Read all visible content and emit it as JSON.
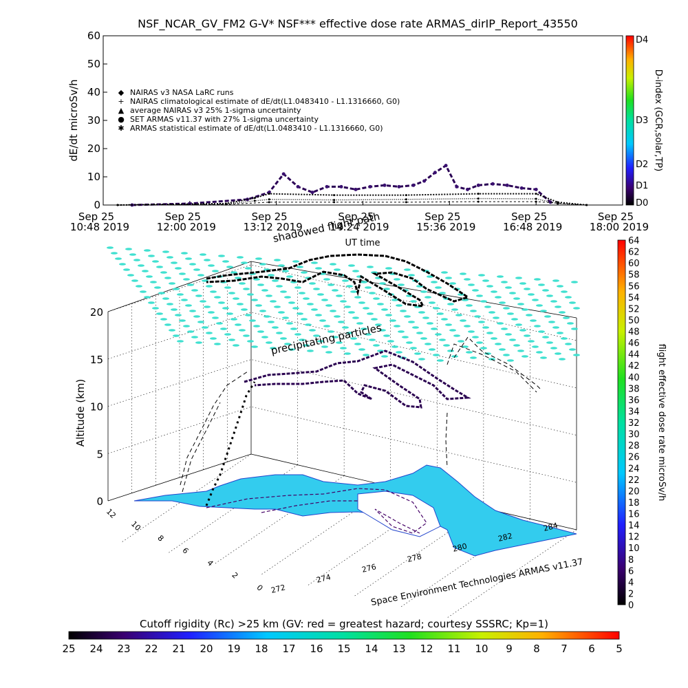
{
  "title": "NSF_NCAR_GV_FM2 G-V* NSF*** effective dose rate ARMAS_dirIP_Report_43550",
  "chart_data": [
    {
      "type": "scatter",
      "ylabel": "dE/dt microSv/h",
      "xlabel": "UT time",
      "ylim": [
        0,
        60
      ],
      "yticks": [
        0,
        10,
        20,
        30,
        40,
        50,
        60
      ],
      "x_ticks": [
        {
          "line1": "Sep 25",
          "line2": "10:48 2019"
        },
        {
          "line1": "Sep 25",
          "line2": "12:00 2019"
        },
        {
          "line1": "Sep 25",
          "line2": "13:12 2019"
        },
        {
          "line1": "Sep 25",
          "line2": "14:24 2019"
        },
        {
          "line1": "Sep 25",
          "line2": "15:36 2019"
        },
        {
          "line1": "Sep 25",
          "line2": "16:48 2019"
        },
        {
          "line1": "Sep 25",
          "line2": "18:00 2019"
        }
      ],
      "xlim_hours": [
        10.8,
        18.0
      ],
      "legend": [
        {
          "symbol": "◆",
          "text": "NAIRAS v3 NASA LaRC runs"
        },
        {
          "symbol": "+",
          "text": "NAIRAS climatological estimate of dE/dt(L1.0483410 - L1.1316660, G0)"
        },
        {
          "symbol": "▲",
          "text": "average NAIRAS v3 25% 1-sigma uncertainty"
        },
        {
          "symbol": "●",
          "text": "SET ARMAS v11.37 with 27% 1-sigma uncertainty"
        },
        {
          "symbol": "✱",
          "text": "ARMAS statistical estimate of dE/dt(L1.0483410 - L1.1316660, G0)"
        }
      ],
      "legend_position": "upper-left",
      "series": [
        {
          "name": "SET ARMAS v11.37 with 27% 1-sigma uncertainty",
          "x": [
            11.2,
            12.0,
            12.8,
            13.1,
            13.3,
            13.5,
            13.7,
            13.9,
            14.1,
            14.3,
            14.5,
            14.7,
            14.9,
            15.1,
            15.25,
            15.4,
            15.55,
            15.7,
            15.85,
            16.0,
            16.2,
            16.4,
            16.6,
            16.8,
            17.0
          ],
          "y": [
            0,
            0.5,
            2,
            4.5,
            11,
            6.5,
            4.5,
            6.5,
            6.5,
            5.5,
            6.5,
            7,
            6.5,
            7,
            8.5,
            11.5,
            14,
            6.5,
            5.5,
            7,
            7.5,
            7,
            6,
            5.5,
            1
          ]
        },
        {
          "name": "NAIRAS climatological estimate of dE/dt(L1.0483410 - L1.1316660, G0)",
          "x": [
            11.0,
            12.5,
            12.9,
            13.1,
            14.0,
            15.0,
            16.0,
            16.8,
            17.1,
            17.5
          ],
          "y": [
            0,
            0.5,
            2.5,
            4,
            3.5,
            3.5,
            4,
            4,
            1,
            0
          ]
        },
        {
          "name": "ARMAS statistical estimate of dE/dt(L1.0483410 - L1.1316660, G0)",
          "x": [
            11.0,
            12.5,
            12.9,
            13.1,
            14.0,
            15.0,
            16.0,
            16.8,
            17.1,
            17.5
          ],
          "y": [
            0,
            0.3,
            1.5,
            2,
            1.8,
            2,
            2.3,
            2.2,
            0.5,
            0
          ]
        },
        {
          "name": "average NAIRAS v3 25% 1-sigma uncertainty",
          "x": [
            11.0,
            12.5,
            13.1,
            14.0,
            15.0,
            16.0,
            16.8,
            17.5
          ],
          "y": [
            0,
            0.2,
            1,
            1,
            1,
            1.2,
            1.2,
            0
          ]
        }
      ],
      "dindex_scale": {
        "label": "D-index (GCR,solar,TP)",
        "ticks": [
          "D0",
          "D1",
          "D2",
          "D3",
          "D4"
        ]
      }
    },
    {
      "type": "scatter",
      "zlabel": "Altitude (km)",
      "zticks": [
        0,
        5,
        10,
        15,
        20
      ],
      "xticks": [
        272,
        274,
        276,
        278,
        280,
        282,
        284
      ],
      "yticks": [
        0,
        2,
        4,
        6,
        8,
        10,
        12
      ],
      "annotations": [
        "precipitating particles",
        "shadowed flight path"
      ],
      "footer": "Space Environment Technologies ARMAS v11.37",
      "dose_colorbar": {
        "label": "flight effective dose rate microSv/h",
        "ticks": [
          0,
          2,
          4,
          6,
          8,
          10,
          12,
          14,
          16,
          18,
          20,
          22,
          24,
          26,
          28,
          30,
          32,
          34,
          36,
          38,
          40,
          42,
          44,
          46,
          48,
          50,
          52,
          54,
          56,
          58,
          60,
          62,
          64
        ]
      },
      "flight_path_hours": [
        12.9,
        13.2,
        13.6,
        14.0,
        14.4,
        14.8,
        15.2,
        15.6,
        16.0,
        16.4,
        16.8
      ],
      "flight_path_altitude_km": [
        5,
        12,
        13,
        13.5,
        13.5,
        13,
        12.5,
        13,
        13.5,
        12,
        8
      ]
    }
  ],
  "cutoff_colorbar": {
    "title": "Cutoff rigidity (Rc) >25 km (GV: red = greatest hazard; courtesy SSSRC; Kp=1)",
    "ticks": [
      25,
      24,
      23,
      22,
      21,
      20,
      19,
      18,
      17,
      16,
      15,
      14,
      13,
      12,
      11,
      10,
      9,
      8,
      7,
      6,
      5
    ]
  },
  "colors": {
    "map_fill": "#33ccee",
    "map_edge": "#2244cc",
    "grid_dots": "#40e0d0",
    "track_dark": "#220044"
  }
}
